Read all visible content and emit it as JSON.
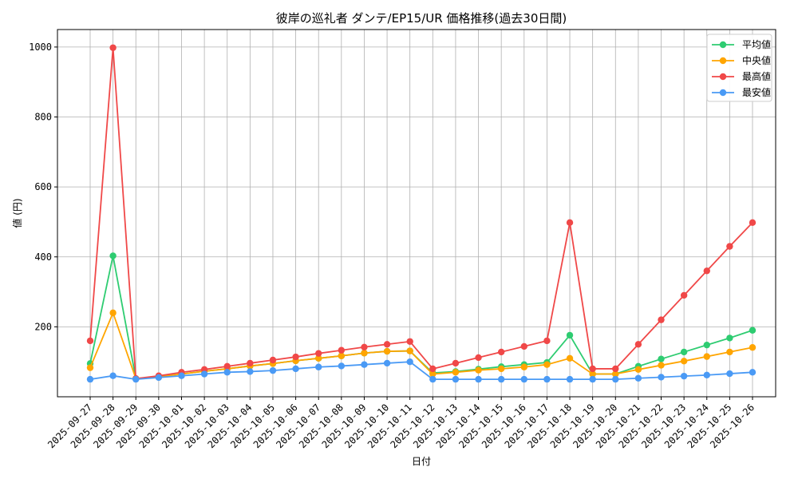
{
  "chart_data": {
    "type": "line",
    "title": "彼岸の巡礼者 ダンテ/EP15/UR 価格推移(過去30日間)",
    "xlabel": "日付",
    "ylabel": "値 (円)",
    "ylim": [
      0,
      1050
    ],
    "yticks": [
      200,
      400,
      600,
      800,
      1000
    ],
    "grid": true,
    "legend_position": "top-right",
    "categories": [
      "2025-09-27",
      "2025-09-28",
      "2025-09-29",
      "2025-09-30",
      "2025-10-01",
      "2025-10-02",
      "2025-10-03",
      "2025-10-04",
      "2025-10-05",
      "2025-10-06",
      "2025-10-07",
      "2025-10-08",
      "2025-10-09",
      "2025-10-10",
      "2025-10-11",
      "2025-10-12",
      "2025-10-13",
      "2025-10-14",
      "2025-10-15",
      "2025-10-16",
      "2025-10-17",
      "2025-10-18",
      "2025-10-19",
      "2025-10-20",
      "2025-10-21",
      "2025-10-22",
      "2025-10-23",
      "2025-10-24",
      "2025-10-25",
      "2025-10-26"
    ],
    "series": [
      {
        "name": "平均値",
        "color": "#2ecc71",
        "values": [
          95,
          403,
          52,
          57,
          65,
          73,
          80,
          88,
          95,
          103,
          110,
          117,
          125,
          130,
          131,
          68,
          72,
          79,
          86,
          92,
          98,
          176,
          65,
          65,
          87,
          108,
          128,
          148,
          168,
          190
        ]
      },
      {
        "name": "中央値",
        "color": "#ffa500",
        "values": [
          83,
          240,
          52,
          57,
          65,
          73,
          80,
          88,
          95,
          103,
          110,
          117,
          125,
          130,
          131,
          65,
          70,
          76,
          80,
          85,
          92,
          110,
          65,
          65,
          78,
          90,
          102,
          115,
          128,
          141
        ]
      },
      {
        "name": "最高値",
        "color": "#f04848",
        "values": [
          160,
          998,
          52,
          60,
          70,
          78,
          87,
          96,
          105,
          114,
          124,
          133,
          142,
          150,
          158,
          80,
          96,
          112,
          128,
          144,
          160,
          498,
          80,
          80,
          150,
          220,
          290,
          360,
          430,
          498
        ]
      },
      {
        "name": "最安値",
        "color": "#4a9af5",
        "values": [
          50,
          60,
          50,
          55,
          60,
          65,
          70,
          72,
          75,
          80,
          85,
          88,
          92,
          96,
          100,
          50,
          50,
          50,
          50,
          50,
          50,
          50,
          50,
          50,
          53,
          56,
          59,
          62,
          66,
          70
        ]
      }
    ]
  }
}
